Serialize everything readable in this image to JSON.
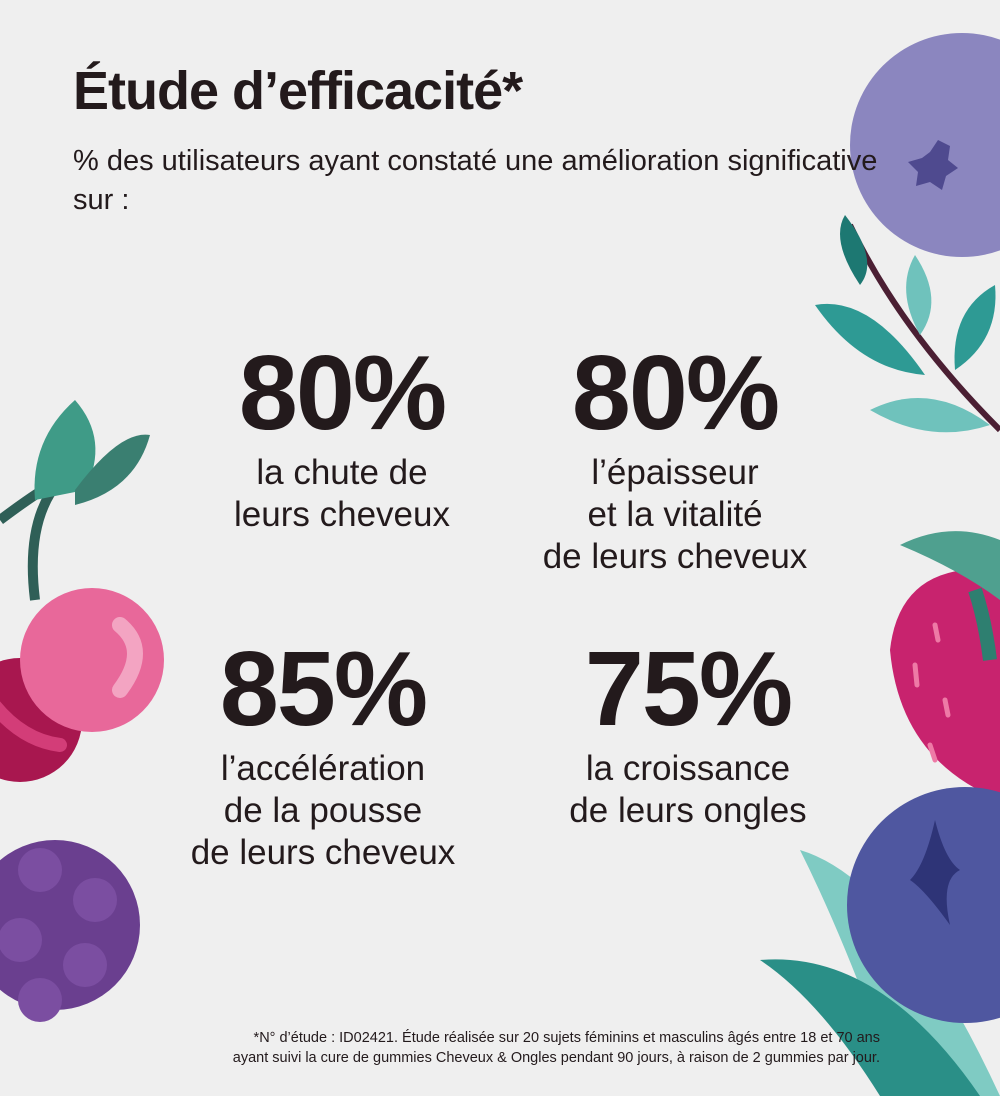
{
  "title": "Étude d’efficacité*",
  "subtitle": "% des utilisateurs ayant constaté une amélioration significative sur :",
  "stats": [
    {
      "value": "80%",
      "label_lines": [
        "la chute de",
        "leurs cheveux"
      ]
    },
    {
      "value": "80%",
      "label_lines": [
        "l’épaisseur",
        "et la vitalité",
        "de leurs cheveux"
      ]
    },
    {
      "value": "85%",
      "label_lines": [
        "l’accélération",
        "de la pousse",
        "de leurs cheveux"
      ]
    },
    {
      "value": "75%",
      "label_lines": [
        "la croissance",
        "de leurs ongles"
      ]
    }
  ],
  "footnote": {
    "line1": "*N° d’étude : ID02421. Étude réalisée sur 20 sujets féminins et masculins âgés entre 18 et 70 ans",
    "line2": "ayant suivi la cure de gummies Cheveux & Ongles pendant 90 jours, à raison de 2 gummies par jour."
  },
  "colors": {
    "background": "#efefef",
    "text": "#231a1c",
    "blueberry_light": "#8b86bf",
    "blueberry_dark": "#4f57a0",
    "cherry": "#e8689a",
    "raspberry": "#6a3f8f",
    "strawberry": "#c8236e",
    "leaf_teal": "#2e9a94"
  }
}
